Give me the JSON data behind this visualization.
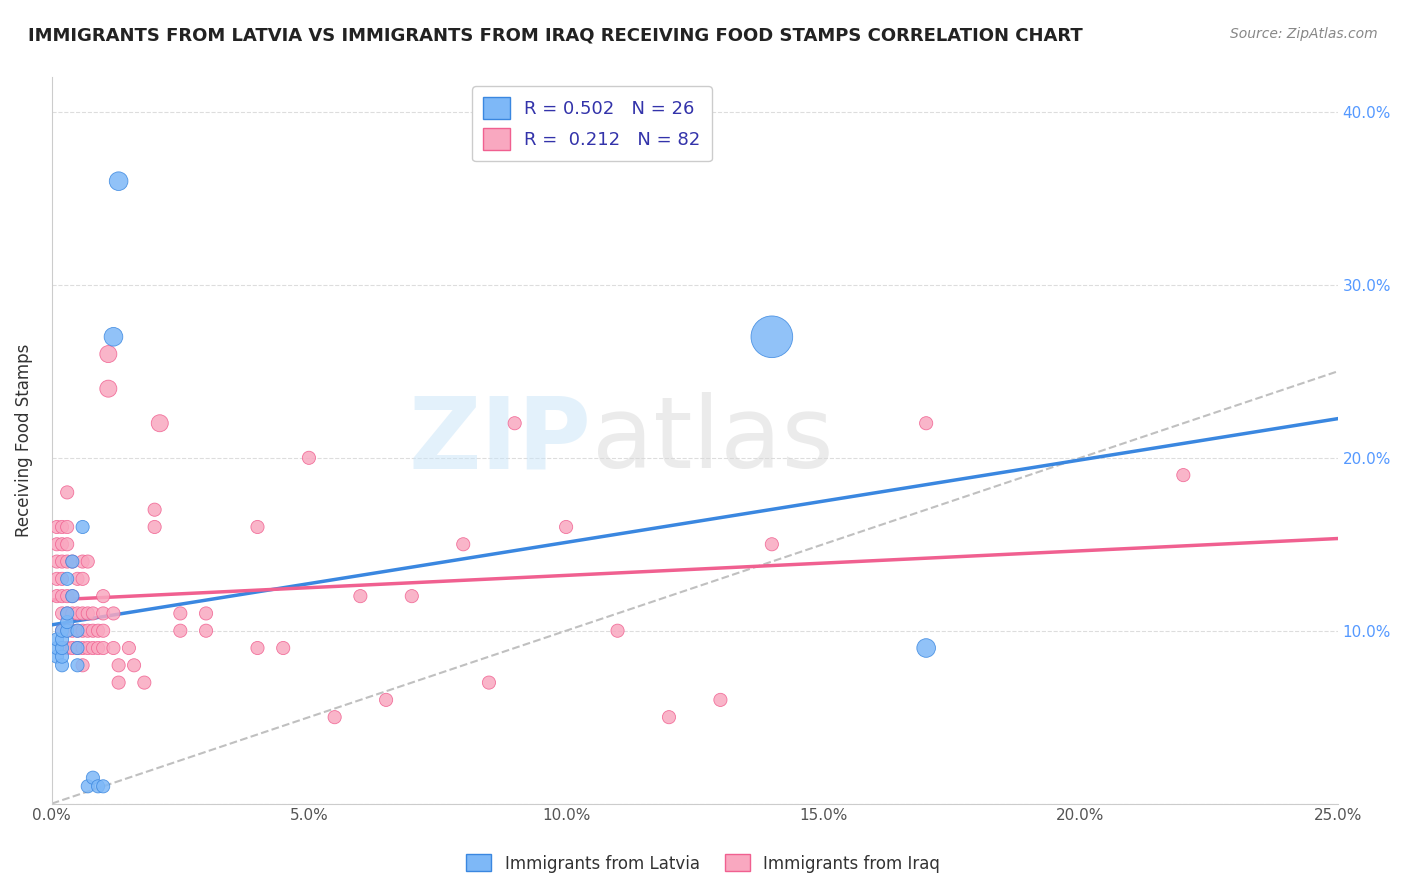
{
  "title": "IMMIGRANTS FROM LATVIA VS IMMIGRANTS FROM IRAQ RECEIVING FOOD STAMPS CORRELATION CHART",
  "source": "Source: ZipAtlas.com",
  "ylabel_label": "Receiving Food Stamps",
  "legend_entry1": "R = 0.502   N = 26",
  "legend_entry2": "R =  0.212   N = 82",
  "legend_label1": "Immigrants from Latvia",
  "legend_label2": "Immigrants from Iraq",
  "color_latvia": "#7eb8f7",
  "color_iraq": "#f9a8c0",
  "color_latvia_line": "#3a87e0",
  "color_iraq_line": "#f06090",
  "color_diagonal": "#c0c0c0",
  "watermark_zip": "ZIP",
  "watermark_atlas": "atlas",
  "xlim": [
    0.0,
    0.25
  ],
  "ylim": [
    0.0,
    0.42
  ],
  "latvia_x": [
    0.001,
    0.001,
    0.001,
    0.002,
    0.002,
    0.002,
    0.002,
    0.002,
    0.003,
    0.003,
    0.003,
    0.003,
    0.004,
    0.004,
    0.005,
    0.005,
    0.005,
    0.006,
    0.007,
    0.008,
    0.009,
    0.01,
    0.012,
    0.013,
    0.14,
    0.17
  ],
  "latvia_y": [
    0.085,
    0.09,
    0.095,
    0.08,
    0.085,
    0.09,
    0.095,
    0.1,
    0.1,
    0.105,
    0.11,
    0.13,
    0.12,
    0.14,
    0.08,
    0.09,
    0.1,
    0.16,
    0.01,
    0.015,
    0.01,
    0.01,
    0.27,
    0.36,
    0.27,
    0.09
  ],
  "latvia_sizes": [
    30,
    30,
    30,
    30,
    30,
    30,
    30,
    30,
    30,
    30,
    30,
    30,
    30,
    30,
    30,
    30,
    30,
    30,
    30,
    30,
    30,
    30,
    60,
    60,
    300,
    60
  ],
  "iraq_x": [
    0.001,
    0.001,
    0.001,
    0.001,
    0.001,
    0.002,
    0.002,
    0.002,
    0.002,
    0.002,
    0.002,
    0.002,
    0.003,
    0.003,
    0.003,
    0.003,
    0.003,
    0.003,
    0.003,
    0.003,
    0.004,
    0.004,
    0.004,
    0.004,
    0.004,
    0.005,
    0.005,
    0.005,
    0.005,
    0.006,
    0.006,
    0.006,
    0.006,
    0.006,
    0.006,
    0.007,
    0.007,
    0.007,
    0.007,
    0.008,
    0.008,
    0.008,
    0.009,
    0.009,
    0.01,
    0.01,
    0.01,
    0.01,
    0.011,
    0.011,
    0.012,
    0.012,
    0.013,
    0.013,
    0.015,
    0.016,
    0.018,
    0.02,
    0.02,
    0.021,
    0.025,
    0.025,
    0.03,
    0.03,
    0.04,
    0.04,
    0.045,
    0.05,
    0.055,
    0.06,
    0.065,
    0.07,
    0.08,
    0.085,
    0.09,
    0.1,
    0.11,
    0.12,
    0.13,
    0.14,
    0.17,
    0.22
  ],
  "iraq_y": [
    0.12,
    0.13,
    0.14,
    0.15,
    0.16,
    0.1,
    0.11,
    0.12,
    0.13,
    0.14,
    0.15,
    0.16,
    0.09,
    0.1,
    0.11,
    0.12,
    0.14,
    0.15,
    0.16,
    0.18,
    0.09,
    0.1,
    0.11,
    0.12,
    0.14,
    0.09,
    0.1,
    0.11,
    0.13,
    0.08,
    0.09,
    0.1,
    0.11,
    0.13,
    0.14,
    0.09,
    0.1,
    0.11,
    0.14,
    0.09,
    0.1,
    0.11,
    0.09,
    0.1,
    0.09,
    0.1,
    0.11,
    0.12,
    0.24,
    0.26,
    0.09,
    0.11,
    0.07,
    0.08,
    0.09,
    0.08,
    0.07,
    0.16,
    0.17,
    0.22,
    0.1,
    0.11,
    0.1,
    0.11,
    0.09,
    0.16,
    0.09,
    0.2,
    0.05,
    0.12,
    0.06,
    0.12,
    0.15,
    0.07,
    0.22,
    0.16,
    0.1,
    0.05,
    0.06,
    0.15,
    0.22,
    0.19
  ],
  "iraq_sizes": [
    30,
    30,
    30,
    30,
    30,
    30,
    30,
    30,
    30,
    30,
    30,
    30,
    30,
    30,
    30,
    30,
    30,
    30,
    30,
    30,
    30,
    30,
    30,
    30,
    30,
    30,
    30,
    30,
    30,
    30,
    30,
    30,
    30,
    30,
    30,
    30,
    30,
    30,
    30,
    30,
    30,
    30,
    30,
    30,
    30,
    30,
    30,
    30,
    50,
    50,
    30,
    30,
    30,
    30,
    30,
    30,
    30,
    30,
    30,
    50,
    30,
    30,
    30,
    30,
    30,
    30,
    30,
    30,
    30,
    30,
    30,
    30,
    30,
    30,
    30,
    30,
    30,
    30,
    30,
    30,
    30,
    30
  ]
}
